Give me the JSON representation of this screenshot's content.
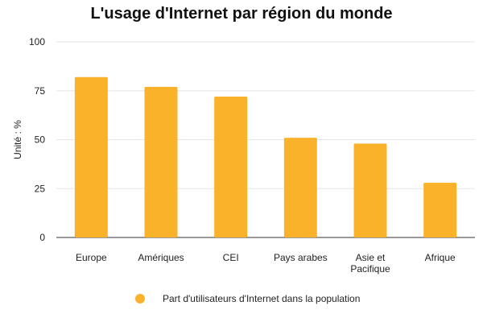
{
  "chart_data": {
    "type": "bar",
    "title": "L'usage d'Internet par région du monde",
    "ylabel": "Unité : %",
    "xlabel": "",
    "categories": [
      [
        "Europe"
      ],
      [
        "Amériques"
      ],
      [
        "CEI"
      ],
      [
        "Pays arabes"
      ],
      [
        "Asie et",
        "Pacifique"
      ],
      [
        "Afrique"
      ]
    ],
    "series": [
      {
        "name": "Part d'utilisateurs d'Internet dans la population",
        "values": [
          82,
          77,
          72,
          51,
          48,
          28
        ],
        "color": "#FBB22B"
      }
    ],
    "ylim": [
      0,
      100
    ],
    "yticks": [
      0,
      25,
      50,
      75,
      100
    ],
    "grid": true,
    "legend_position": "bottom"
  }
}
